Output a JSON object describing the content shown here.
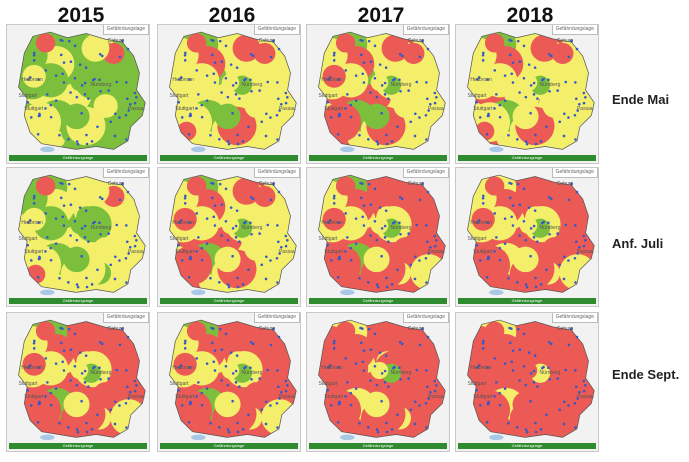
{
  "years": [
    "2015",
    "2016",
    "2017",
    "2018"
  ],
  "rows": [
    "Ende Mai",
    "Anf. Juli",
    "Ende Sept."
  ],
  "panel_tab": "Gefährdungslage",
  "footer_text": "Gefährdungslage",
  "cities": [
    "Coburg",
    "Hof",
    "Würzburg",
    "Bayreuth",
    "Heilbronn",
    "Nürnberg",
    "Regensburg",
    "Stuttgart",
    "Passau",
    "Ingolstadt",
    "Augsburg",
    "Kempten",
    "München",
    "Rosenheim"
  ],
  "colors": {
    "green": "#7cbf3c",
    "yellow": "#f3ef6a",
    "red": "#ec5a56",
    "blue": "#3558c9",
    "lake": "#a9c8e6",
    "frame": "#f2f2f2",
    "footer": "#2e8b2e"
  },
  "legend": {
    "low": "green",
    "medium": "yellow",
    "high": "red",
    "stations": "blue dots"
  },
  "map_states": {
    "2015": {
      "Ende Mai": {
        "green": 0.55,
        "yellow": 0.4,
        "red": 0.05
      },
      "Anf. Juli": {
        "green": 0.35,
        "yellow": 0.55,
        "red": 0.1
      },
      "Ende Sept.": {
        "green": 0.05,
        "yellow": 0.4,
        "red": 0.55
      }
    },
    "2016": {
      "Ende Mai": {
        "green": 0.1,
        "yellow": 0.75,
        "red": 0.15
      },
      "Anf. Juli": {
        "green": 0.05,
        "yellow": 0.6,
        "red": 0.35
      },
      "Ende Sept.": {
        "green": 0.05,
        "yellow": 0.35,
        "red": 0.6
      }
    },
    "2017": {
      "Ende Mai": {
        "green": 0.1,
        "yellow": 0.6,
        "red": 0.3
      },
      "Anf. Juli": {
        "green": 0.05,
        "yellow": 0.4,
        "red": 0.55
      },
      "Ende Sept.": {
        "green": 0.02,
        "yellow": 0.23,
        "red": 0.75
      }
    },
    "2018": {
      "Ende Mai": {
        "green": 0.05,
        "yellow": 0.7,
        "red": 0.25
      },
      "Anf. Juli": {
        "green": 0.02,
        "yellow": 0.38,
        "red": 0.6
      },
      "Ende Sept.": {
        "green": 0.0,
        "yellow": 0.05,
        "red": 0.95
      }
    }
  }
}
